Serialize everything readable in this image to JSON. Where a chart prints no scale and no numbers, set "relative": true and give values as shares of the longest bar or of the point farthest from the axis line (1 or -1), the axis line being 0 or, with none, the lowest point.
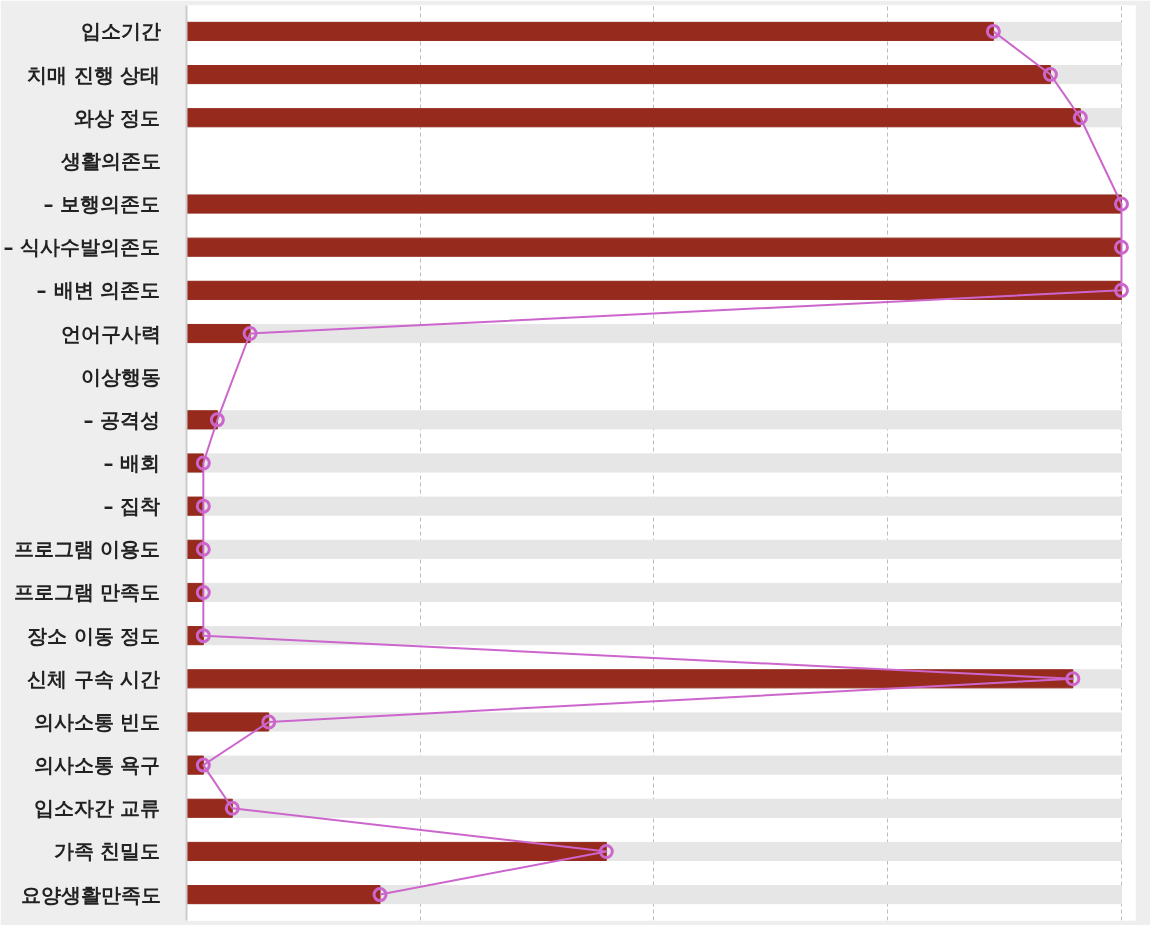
{
  "chart_data": {
    "type": "bar",
    "orientation": "horizontal",
    "relative": true,
    "grid": "x",
    "marker": "circle",
    "categories": [
      "입소기간",
      "치매 진행 상태",
      "와상 정도",
      "생활의존도",
      "– 보행의존도",
      "– 식사수발의존도",
      "– 배변 의존도",
      "언어구사력",
      "이상행동",
      "– 공격성",
      "– 배회",
      "– 집착",
      "프로그램 이용도",
      "프로그램 만족도",
      "장소 이동 정도",
      "신체 구속 시간",
      "의사소통 빈도",
      "의사소통 욕구",
      "입소자간 교류",
      "가족 친밀도",
      "요양생활만족도"
    ],
    "series": [
      {
        "color": "#962a1d",
        "values": [
          0.863,
          0.924,
          0.956,
          null,
          1.0,
          1.0,
          1.0,
          0.068,
          null,
          0.033,
          0.018,
          0.018,
          0.018,
          0.018,
          0.018,
          0.948,
          0.088,
          0.018,
          0.049,
          0.449,
          0.207
        ]
      },
      {
        "type": "line",
        "color": "#cc66cc",
        "values": [
          0.863,
          0.924,
          0.956,
          null,
          1.0,
          1.0,
          1.0,
          0.068,
          null,
          0.033,
          0.018,
          0.018,
          0.018,
          0.018,
          0.018,
          0.948,
          0.088,
          0.018,
          0.049,
          0.449,
          0.207
        ]
      }
    ]
  }
}
